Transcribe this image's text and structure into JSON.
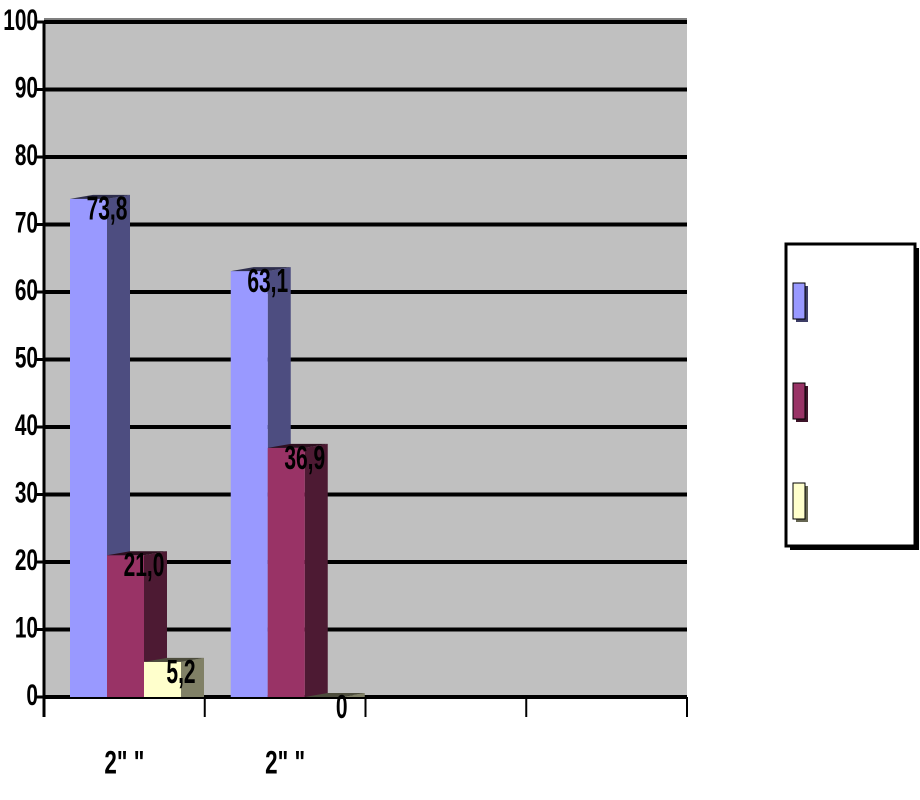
{
  "chart_data": {
    "type": "bar",
    "categories": [
      "2\" \"",
      "2\" \"",
      null,
      null
    ],
    "series": [
      {
        "color": "#9999ff",
        "values": [
          73.8,
          63.1,
          null,
          null
        ],
        "value_labels": [
          "73,8",
          "63,1",
          null,
          null
        ]
      },
      {
        "color": "#993366",
        "values": [
          21.0,
          36.9,
          null,
          null
        ],
        "value_labels": [
          "21,0",
          "36,9",
          null,
          null
        ]
      },
      {
        "color": "#ffffcc",
        "values": [
          5.2,
          0,
          null,
          null
        ],
        "value_labels": [
          "5,2",
          "0",
          null,
          null
        ]
      }
    ],
    "ylim": [
      0,
      100
    ],
    "yticks": [
      0,
      10,
      20,
      30,
      40,
      50,
      60,
      70,
      80,
      90,
      100
    ],
    "grid": true,
    "legend": "right"
  }
}
